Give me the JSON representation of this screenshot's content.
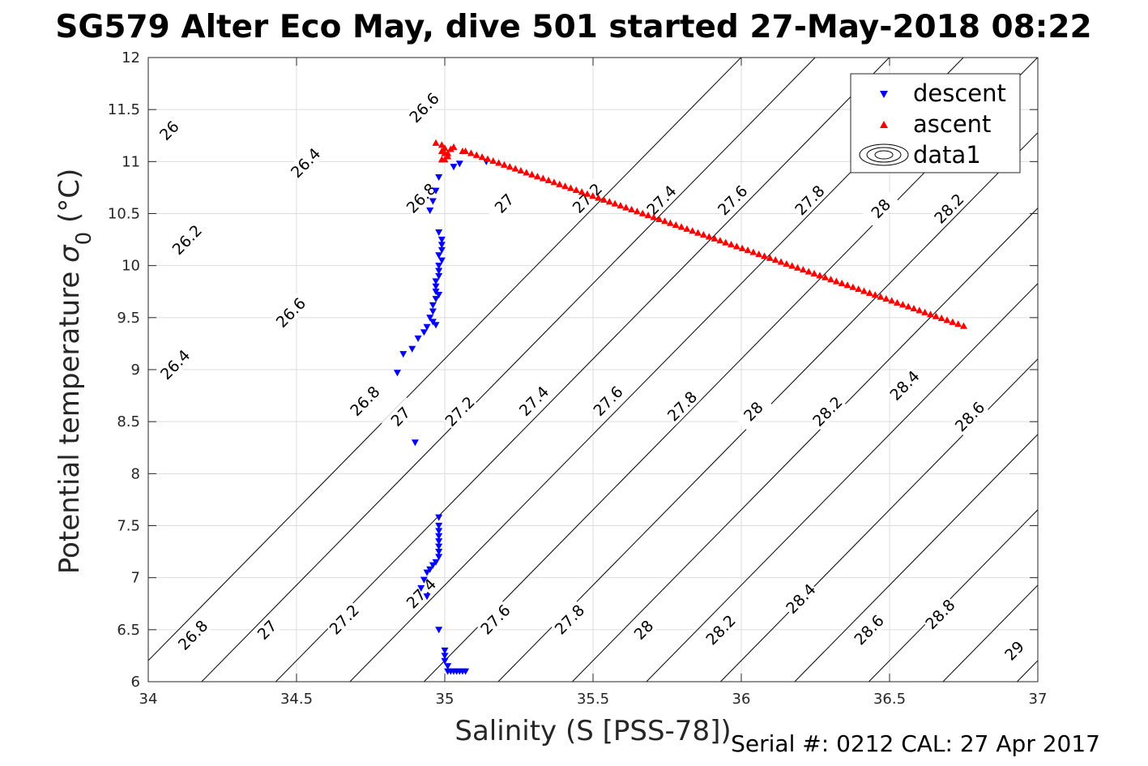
{
  "title": "SG579 Alter Eco May, dive 501 started 27-May-2018 08:22",
  "serial": "Serial #: 0212  CAL: 27 Apr 2017",
  "chart_data": {
    "type": "scatter",
    "xlabel": "Salinity (S [PSS-78])",
    "ylabel_main": "Potential temperature ",
    "ylabel_sigma": "σ",
    "ylabel_sub": "0",
    "ylabel_unit": " (°C)",
    "xlim": [
      34,
      37
    ],
    "ylim": [
      6,
      12
    ],
    "xticks": [
      34,
      34.5,
      35,
      35.5,
      36,
      36.5,
      37
    ],
    "yticks": [
      6,
      6.5,
      7,
      7.5,
      8,
      8.5,
      9,
      9.5,
      10,
      10.5,
      11,
      11.5,
      12
    ],
    "xtick_labels": [
      "34",
      "34.5",
      "35",
      "35.5",
      "36",
      "36.5",
      "37"
    ],
    "ytick_labels": [
      "6",
      "6.5",
      "7",
      "7.5",
      "8",
      "8.5",
      "9",
      "9.5",
      "10",
      "10.5",
      "11",
      "11.5",
      "12"
    ],
    "grid": true,
    "legend_position": "top-right",
    "legend": [
      {
        "label": "descent",
        "marker": "triangle-down",
        "color": "#0000ff"
      },
      {
        "label": "ascent",
        "marker": "triangle-up",
        "color": "#ff0000"
      },
      {
        "label": "data1",
        "marker": "contour",
        "color": "#000000"
      }
    ],
    "density_contours": {
      "levels": [
        26,
        26.2,
        26.4,
        26.6,
        26.8,
        27,
        27.2,
        27.4,
        27.6,
        27.8,
        28,
        28.2,
        28.4,
        28.6,
        28.8,
        29
      ],
      "sigma_ref": 26,
      "salinity_per_sigma": 1.25,
      "slope_temperature_per_salinity": 2.9,
      "labels": [
        {
          "text": "26",
          "s": 34.07,
          "t": 11.3
        },
        {
          "text": "26.2",
          "s": 34.13,
          "t": 10.25
        },
        {
          "text": "26.4",
          "s": 34.09,
          "t": 9.05
        },
        {
          "text": "26.8",
          "s": 34.15,
          "t": 6.45
        },
        {
          "text": "26.4",
          "s": 34.53,
          "t": 10.99
        },
        {
          "text": "26.6",
          "s": 34.48,
          "t": 9.55
        },
        {
          "text": "27",
          "s": 34.4,
          "t": 6.5
        },
        {
          "text": "26.6",
          "s": 34.93,
          "t": 11.52
        },
        {
          "text": "26.8",
          "s": 34.73,
          "t": 8.7
        },
        {
          "text": "27.2",
          "s": 34.66,
          "t": 6.6
        },
        {
          "text": "26.8",
          "s": 34.92,
          "t": 10.65
        },
        {
          "text": "27",
          "s": 34.85,
          "t": 8.55
        },
        {
          "text": "27.4",
          "s": 34.92,
          "t": 6.85
        },
        {
          "text": "27",
          "s": 35.2,
          "t": 10.6
        },
        {
          "text": "27.2",
          "s": 35.05,
          "t": 8.6
        },
        {
          "text": "27.6",
          "s": 35.17,
          "t": 6.6
        },
        {
          "text": "27.2",
          "s": 35.48,
          "t": 10.65
        },
        {
          "text": "27.4",
          "s": 35.3,
          "t": 8.7
        },
        {
          "text": "27.8",
          "s": 35.42,
          "t": 6.6
        },
        {
          "text": "27.4",
          "s": 35.73,
          "t": 10.63
        },
        {
          "text": "27.6",
          "s": 35.55,
          "t": 8.7
        },
        {
          "text": "28",
          "s": 35.67,
          "t": 6.5
        },
        {
          "text": "27.6",
          "s": 35.97,
          "t": 10.63
        },
        {
          "text": "27.8",
          "s": 35.8,
          "t": 8.65
        },
        {
          "text": "28.2",
          "s": 35.93,
          "t": 6.5
        },
        {
          "text": "27.8",
          "s": 36.23,
          "t": 10.63
        },
        {
          "text": "28",
          "s": 36.04,
          "t": 8.6
        },
        {
          "text": "28.4",
          "s": 36.2,
          "t": 6.8
        },
        {
          "text": "28",
          "s": 36.47,
          "t": 10.55
        },
        {
          "text": "28.2",
          "s": 36.29,
          "t": 8.6
        },
        {
          "text": "28.6",
          "s": 36.43,
          "t": 6.5
        },
        {
          "text": "28.2",
          "s": 36.7,
          "t": 10.55
        },
        {
          "text": "28.4",
          "s": 36.55,
          "t": 8.85
        },
        {
          "text": "28.8",
          "s": 36.67,
          "t": 6.65
        },
        {
          "text": "28.6",
          "s": 36.77,
          "t": 8.55
        },
        {
          "text": "29",
          "s": 36.92,
          "t": 6.3
        }
      ]
    },
    "series": [
      {
        "name": "descent",
        "marker": "triangle-down",
        "color": "#0000ff",
        "points": [
          [
            35.14,
            11.0
          ],
          [
            35.05,
            10.98
          ],
          [
            35.03,
            10.95
          ],
          [
            34.98,
            10.85
          ],
          [
            34.97,
            10.72
          ],
          [
            34.96,
            10.62
          ],
          [
            34.95,
            10.53
          ],
          [
            34.98,
            10.32
          ],
          [
            34.99,
            10.25
          ],
          [
            34.99,
            10.2
          ],
          [
            34.99,
            10.15
          ],
          [
            34.98,
            10.1
          ],
          [
            34.99,
            10.05
          ],
          [
            34.98,
            10.0
          ],
          [
            34.98,
            9.95
          ],
          [
            34.98,
            9.9
          ],
          [
            34.97,
            9.85
          ],
          [
            34.97,
            9.8
          ],
          [
            34.97,
            9.75
          ],
          [
            34.98,
            9.72
          ],
          [
            34.97,
            9.68
          ],
          [
            34.96,
            9.62
          ],
          [
            34.96,
            9.56
          ],
          [
            34.95,
            9.5
          ],
          [
            34.96,
            9.46
          ],
          [
            34.97,
            9.43
          ],
          [
            34.94,
            9.41
          ],
          [
            34.93,
            9.36
          ],
          [
            34.91,
            9.3
          ],
          [
            34.89,
            9.2
          ],
          [
            34.86,
            9.15
          ],
          [
            34.84,
            8.97
          ],
          [
            34.9,
            8.3
          ],
          [
            34.98,
            7.58
          ],
          [
            34.98,
            7.5
          ],
          [
            34.98,
            7.45
          ],
          [
            34.98,
            7.4
          ],
          [
            34.98,
            7.35
          ],
          [
            34.98,
            7.3
          ],
          [
            34.98,
            7.25
          ],
          [
            34.98,
            7.2
          ],
          [
            34.97,
            7.15
          ],
          [
            34.96,
            7.12
          ],
          [
            34.95,
            7.08
          ],
          [
            34.94,
            7.05
          ],
          [
            34.93,
            6.98
          ],
          [
            34.92,
            6.9
          ],
          [
            34.94,
            6.82
          ],
          [
            34.98,
            6.5
          ],
          [
            35.0,
            6.3
          ],
          [
            35.0,
            6.25
          ],
          [
            35.0,
            6.2
          ],
          [
            35.01,
            6.15
          ],
          [
            35.01,
            6.1
          ],
          [
            35.02,
            6.1
          ],
          [
            35.03,
            6.1
          ],
          [
            35.04,
            6.1
          ],
          [
            35.05,
            6.1
          ],
          [
            35.06,
            6.1
          ],
          [
            35.07,
            6.1
          ]
        ]
      },
      {
        "name": "ascent",
        "marker": "triangle-up",
        "color": "#ff0000",
        "points": [
          [
            34.97,
            11.18
          ],
          [
            34.99,
            11.16
          ],
          [
            35.0,
            11.13
          ],
          [
            34.99,
            11.1
          ],
          [
            35.0,
            11.08
          ],
          [
            35.01,
            11.05
          ],
          [
            35.0,
            11.02
          ],
          [
            34.99,
            11.02
          ],
          [
            35.01,
            11.08
          ],
          [
            35.02,
            11.12
          ],
          [
            35.03,
            11.14
          ],
          [
            35.06,
            11.1
          ]
        ],
        "trend_start": [
          35.07,
          11.1
        ],
        "trend_end": [
          36.75,
          9.42
        ],
        "trend_count": 90
      }
    ]
  }
}
